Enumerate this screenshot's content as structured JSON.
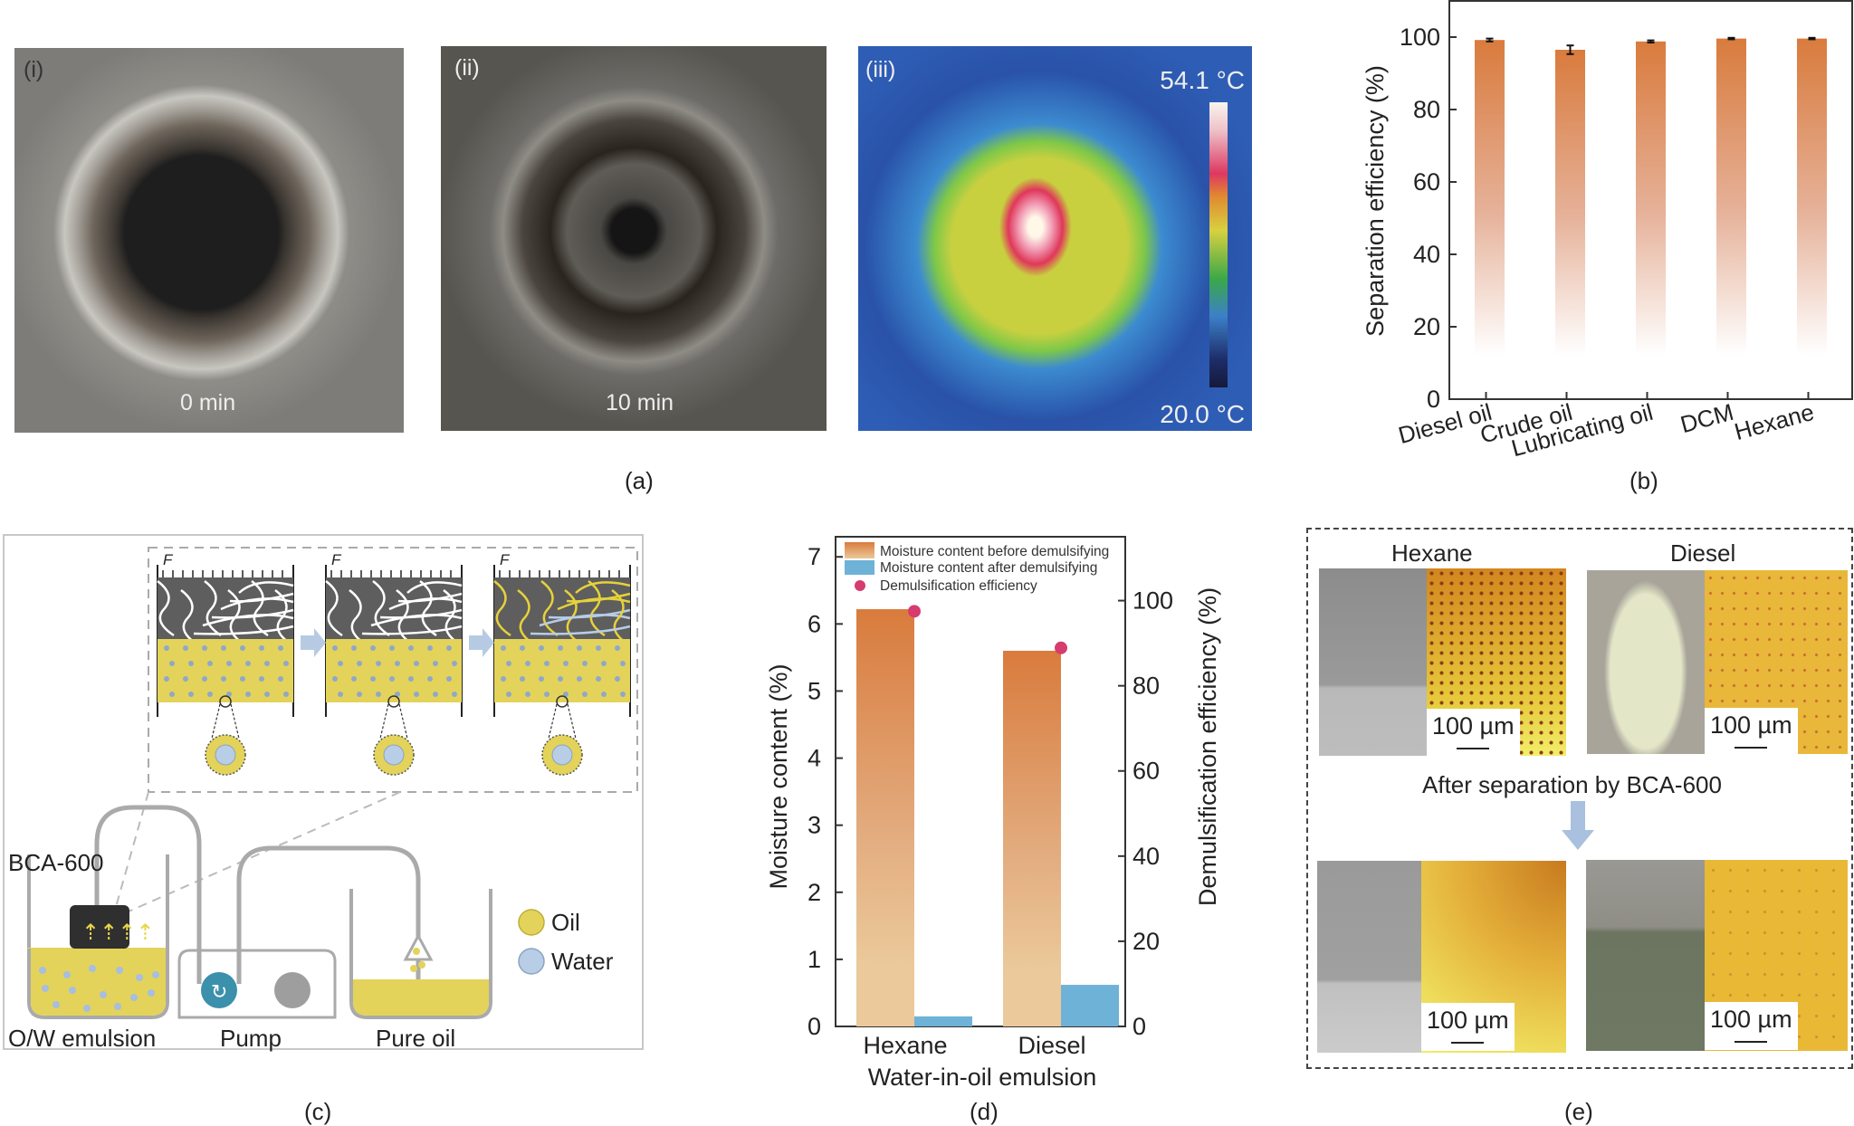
{
  "panel_a": {
    "caption": "(a)",
    "photos": [
      {
        "tag": "(i)",
        "label": "0 min"
      },
      {
        "tag": "(ii)",
        "label": "10 min"
      },
      {
        "tag": "(iii)",
        "temp_max": "54.1 °C",
        "temp_min": "20.0 °C"
      }
    ]
  },
  "panel_c": {
    "caption": "(c)",
    "force_label": "F",
    "device_label": "BCA-600",
    "labels": [
      "O/W emulsion",
      "Pump",
      "Pure oil"
    ],
    "legend": [
      {
        "name": "Oil",
        "color": "#E3D35A"
      },
      {
        "name": "Water",
        "color": "#B8CDE6"
      }
    ]
  },
  "panel_e": {
    "caption": "(e)",
    "headers": [
      "Hexane",
      "Diesel"
    ],
    "middle_text": "After separation by BCA-600",
    "scale_bar": "100 µm"
  },
  "colors": {
    "bar_orange_top": "#D97B3D",
    "bar_orange_bottom": "#EBC99A",
    "bar_blue": "#6FB2D8",
    "dot_pink": "#D63C6E"
  },
  "chart_data": [
    {
      "id": "b",
      "type": "bar",
      "caption": "(b)",
      "title": "",
      "categories": [
        "Diesel oil",
        "Crude oil",
        "Lubricating oil",
        "DCM",
        "Hexane"
      ],
      "values": [
        99.2,
        96.5,
        98.8,
        99.6,
        99.6
      ],
      "errors": [
        0.4,
        1.2,
        0.3,
        0.2,
        0.2
      ],
      "xlabel": "",
      "ylabel": "Separation efficiency (%)",
      "ylim": [
        0,
        110
      ],
      "yticks": [
        0,
        20,
        40,
        60,
        80,
        100
      ],
      "grid": false
    },
    {
      "id": "d",
      "type": "bar",
      "caption": "(d)",
      "title": "",
      "categories": [
        "Hexane",
        "Diesel"
      ],
      "series": [
        {
          "name": "Moisture content before demulsifying",
          "axis": "left",
          "values": [
            6.22,
            5.6
          ]
        },
        {
          "name": "Moisture content after demulsifying",
          "axis": "left",
          "values": [
            0.15,
            0.62
          ]
        },
        {
          "name": "Demulsification efficiency",
          "axis": "right",
          "kind": "scatter",
          "values": [
            97.5,
            88.9
          ]
        }
      ],
      "xlabel": "Water-in-oil emulsion",
      "ylabel": "Moisture content (%)",
      "ylabel_right": "Demulsification efficiency (%)",
      "ylim": [
        0,
        7.3
      ],
      "yticks": [
        0,
        1,
        2,
        3,
        4,
        5,
        6,
        7
      ],
      "ylim_right": [
        0,
        115
      ],
      "yticks_right": [
        0,
        20,
        40,
        60,
        80,
        100
      ],
      "legend": "top-left",
      "grid": false
    }
  ]
}
